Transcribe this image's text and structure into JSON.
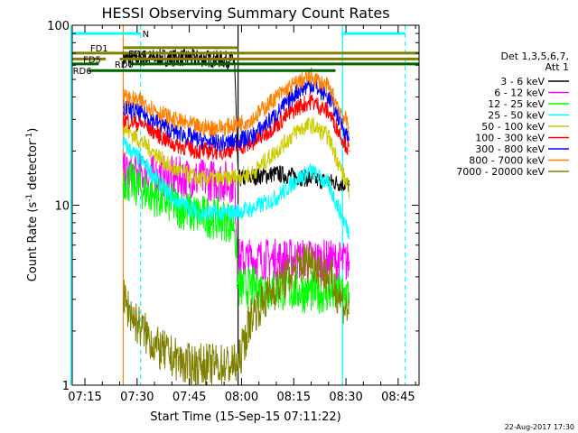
{
  "chart_data": {
    "type": "line",
    "title": "HESSI Observing Summary Count Rates",
    "xlabel": "Start Time (15-Sep-15 07:11:22)",
    "ylabel": "Count Rate (s⁻¹ detector⁻¹)",
    "ylabel_main": "Count Rate (s",
    "ylabel_sup1": "-1",
    "ylabel_mid": " detector",
    "ylabel_sup2": "-1",
    "ylabel_end": ")",
    "yscale": "log",
    "ylim": [
      1,
      100
    ],
    "xlim": [
      "07:11:22",
      "08:51:00"
    ],
    "x_ticks": [
      "07:15",
      "07:30",
      "07:45",
      "08:00",
      "08:15",
      "08:30",
      "08:45"
    ],
    "x_tick_minutes": [
      435,
      450,
      465,
      480,
      495,
      510,
      525
    ],
    "y_ticks": [
      1,
      10,
      100
    ],
    "y_tick_labels": [
      "1",
      "10",
      "100"
    ],
    "legend_title": [
      "Det 1,3,5,6,7,",
      "Att 1"
    ],
    "legend_placement": "right",
    "series": [
      {
        "name": "3 - 6 keV",
        "color": "#000000",
        "points": [
          [
            "07:26",
            65
          ],
          [
            "07:36",
            66
          ],
          [
            "07:46",
            66
          ],
          [
            "07:58",
            64
          ],
          [
            "07:59",
            14
          ],
          [
            "08:10",
            15
          ],
          [
            "08:20",
            14
          ],
          [
            "08:31",
            13
          ]
        ]
      },
      {
        "name": "6 - 12 keV",
        "color": "#ff00ff",
        "points": [
          [
            "07:26",
            15
          ],
          [
            "07:36",
            14.5
          ],
          [
            "07:46",
            14
          ],
          [
            "07:58",
            13.5
          ],
          [
            "07:59",
            5
          ],
          [
            "08:10",
            5
          ],
          [
            "08:20",
            5
          ],
          [
            "08:31",
            4.8
          ]
        ]
      },
      {
        "name": "12 - 25 keV",
        "color": "#00ff00",
        "points": [
          [
            "07:26",
            14
          ],
          [
            "07:36",
            11
          ],
          [
            "07:46",
            9
          ],
          [
            "07:58",
            8
          ],
          [
            "07:59",
            3.5
          ],
          [
            "08:10",
            3.4
          ],
          [
            "08:20",
            3.3
          ],
          [
            "08:31",
            3.2
          ]
        ]
      },
      {
        "name": "25 - 50 keV",
        "color": "#00ffff",
        "points": [
          [
            "07:26",
            22
          ],
          [
            "07:32",
            17
          ],
          [
            "07:40",
            11
          ],
          [
            "07:48",
            9
          ],
          [
            "07:55",
            9
          ],
          [
            "08:03",
            9.5
          ],
          [
            "08:10",
            11
          ],
          [
            "08:16",
            14
          ],
          [
            "08:20",
            15.5
          ],
          [
            "08:25",
            13
          ],
          [
            "08:31",
            7
          ]
        ]
      },
      {
        "name": "50 - 100 keV",
        "color": "#cccc00",
        "points": [
          [
            "07:26",
            27
          ],
          [
            "07:32",
            22
          ],
          [
            "07:40",
            16
          ],
          [
            "07:48",
            14
          ],
          [
            "07:55",
            14
          ],
          [
            "08:03",
            15
          ],
          [
            "08:10",
            20
          ],
          [
            "08:16",
            26
          ],
          [
            "08:20",
            28
          ],
          [
            "08:25",
            24
          ],
          [
            "08:31",
            12
          ]
        ]
      },
      {
        "name": "100 - 300 keV",
        "color": "#ff0000",
        "points": [
          [
            "07:26",
            30
          ],
          [
            "07:32",
            28
          ],
          [
            "07:40",
            22
          ],
          [
            "07:48",
            20
          ],
          [
            "07:55",
            20
          ],
          [
            "08:03",
            22
          ],
          [
            "08:10",
            28
          ],
          [
            "08:16",
            35
          ],
          [
            "08:20",
            38
          ],
          [
            "08:25",
            33
          ],
          [
            "08:31",
            20
          ]
        ]
      },
      {
        "name": "300 - 800 keV",
        "color": "#0000ff",
        "points": [
          [
            "07:26",
            35
          ],
          [
            "07:32",
            32
          ],
          [
            "07:40",
            26
          ],
          [
            "07:48",
            23
          ],
          [
            "07:55",
            22
          ],
          [
            "08:03",
            24
          ],
          [
            "08:10",
            32
          ],
          [
            "08:16",
            43
          ],
          [
            "08:20",
            47
          ],
          [
            "08:25",
            40
          ],
          [
            "08:31",
            23
          ]
        ]
      },
      {
        "name": "800 - 7000 keV",
        "color": "#ff8000",
        "points": [
          [
            "07:26",
            40
          ],
          [
            "07:32",
            37
          ],
          [
            "07:40",
            30
          ],
          [
            "07:48",
            27
          ],
          [
            "07:55",
            27
          ],
          [
            "08:03",
            30
          ],
          [
            "08:10",
            40
          ],
          [
            "08:16",
            48
          ],
          [
            "08:20",
            52
          ],
          [
            "08:25",
            45
          ],
          [
            "08:31",
            27
          ]
        ]
      },
      {
        "name": "7000 - 20000 keV",
        "color": "#808000",
        "points": [
          [
            "07:26",
            3
          ],
          [
            "07:30",
            2.2
          ],
          [
            "07:36",
            1.6
          ],
          [
            "07:44",
            1.3
          ],
          [
            "07:52",
            1.3
          ],
          [
            "07:59",
            1.3
          ],
          [
            "08:03",
            2.5
          ],
          [
            "08:10",
            3.5
          ],
          [
            "08:16",
            4.5
          ],
          [
            "08:20",
            5
          ],
          [
            "08:25",
            4
          ],
          [
            "08:31",
            2.5
          ]
        ]
      }
    ],
    "top_bars": [
      {
        "label": "N",
        "color": "#00ffff",
        "label_color": "#00ffff",
        "segments": [
          [
            "07:11",
            "07:31"
          ],
          [
            "08:29",
            "08:47"
          ]
        ],
        "level": 90,
        "label_at": "07:31"
      },
      {
        "label": "FD1",
        "color": "#808000",
        "label_color": "#808000",
        "segments": [
          [
            "07:26",
            "07:59"
          ]
        ],
        "level": 75,
        "label_at": "07:16"
      },
      {
        "label": "FD4",
        "color": "#808000",
        "label_color": "#808000",
        "segments": [
          [
            "07:11",
            "08:51"
          ]
        ],
        "level": 70,
        "label_at": "07:27"
      },
      {
        "label": "FD5",
        "color": "#808000",
        "label_color": "#808000",
        "segments": [
          [
            "07:11",
            "07:21"
          ],
          [
            "07:25",
            "08:51"
          ]
        ],
        "level": 65,
        "label_at": "07:14"
      },
      {
        "label": "RD0",
        "color": "#006400",
        "label_color": "#006400",
        "segments": [
          [
            "07:11",
            "07:19"
          ],
          [
            "07:28",
            "08:51"
          ]
        ],
        "level": 61,
        "label_at": "07:23"
      },
      {
        "label": "RD6",
        "color": "#006400",
        "label_color": "#006400",
        "segments": [
          [
            "07:16",
            "08:27"
          ]
        ],
        "level": 56,
        "label_at": "07:11"
      }
    ],
    "vertical_lines": [
      {
        "time": "07:11",
        "color": "#00ffff",
        "dashed": false
      },
      {
        "time": "07:31",
        "color": "#00ffff",
        "dashed": true
      },
      {
        "time": "07:26",
        "color": "#ff8000",
        "dashed": false
      },
      {
        "time": "07:59",
        "color": "#000000",
        "dashed": false
      },
      {
        "time": "08:29",
        "color": "#00ffff",
        "dashed": false
      },
      {
        "time": "08:47",
        "color": "#00ffff",
        "dashed": true
      }
    ],
    "footer_date": "22-Aug-2017 17:30"
  }
}
